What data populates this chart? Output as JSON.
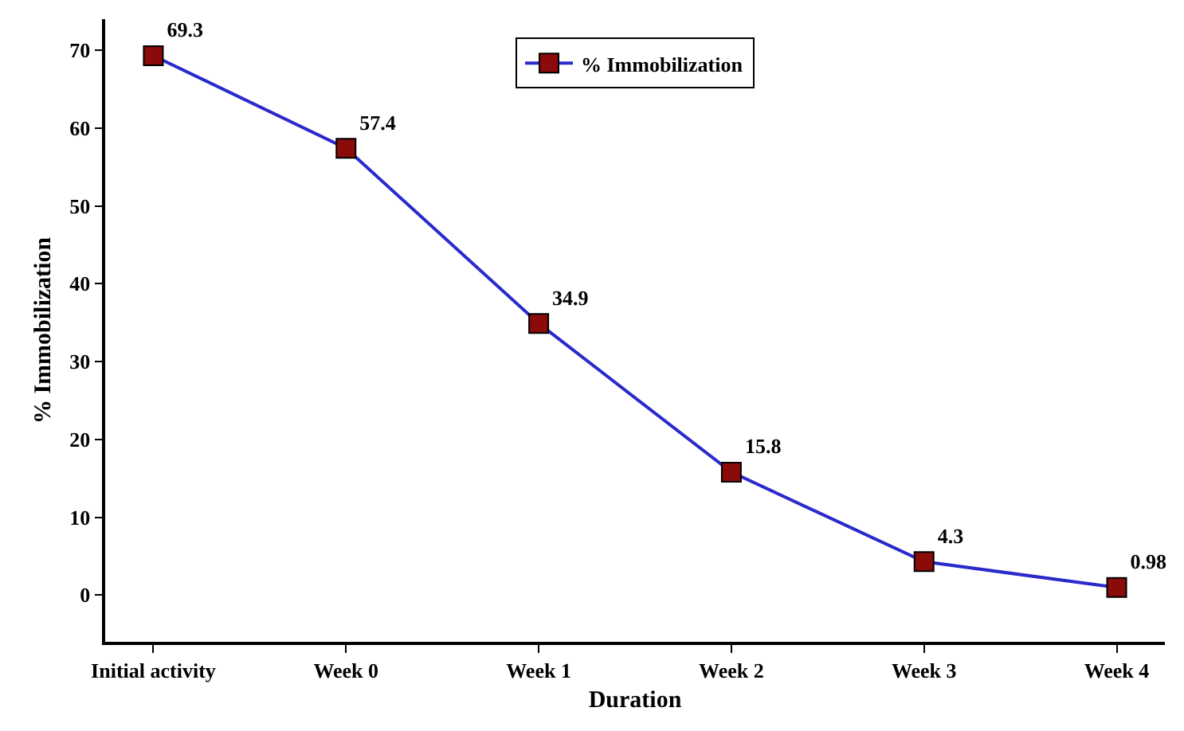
{
  "chart_data": {
    "type": "line",
    "xlabel": "Duration",
    "ylabel": "% Immobilization",
    "categories": [
      "Initial activity",
      "Week 0",
      "Week 1",
      "Week 2",
      "Week 3",
      "Week 4"
    ],
    "series": [
      {
        "name": "% Immobilization",
        "color": "#2a2acc",
        "colors": [
          "#8b0a0a",
          "#8b0a0a",
          "#8b0a0a",
          "#8b0a0a",
          "#8b0a0a",
          "#8b0a0a"
        ],
        "values": [
          69.3,
          57.4,
          34.9,
          15.8,
          4.3,
          0.98
        ]
      }
    ],
    "ylim": [
      -6,
      74
    ],
    "yticks": [
      0,
      10,
      20,
      30,
      40,
      50,
      60,
      70
    ],
    "data_labels": true,
    "marker": "square",
    "line_style": "solid",
    "legend": "top",
    "grid": false
  }
}
